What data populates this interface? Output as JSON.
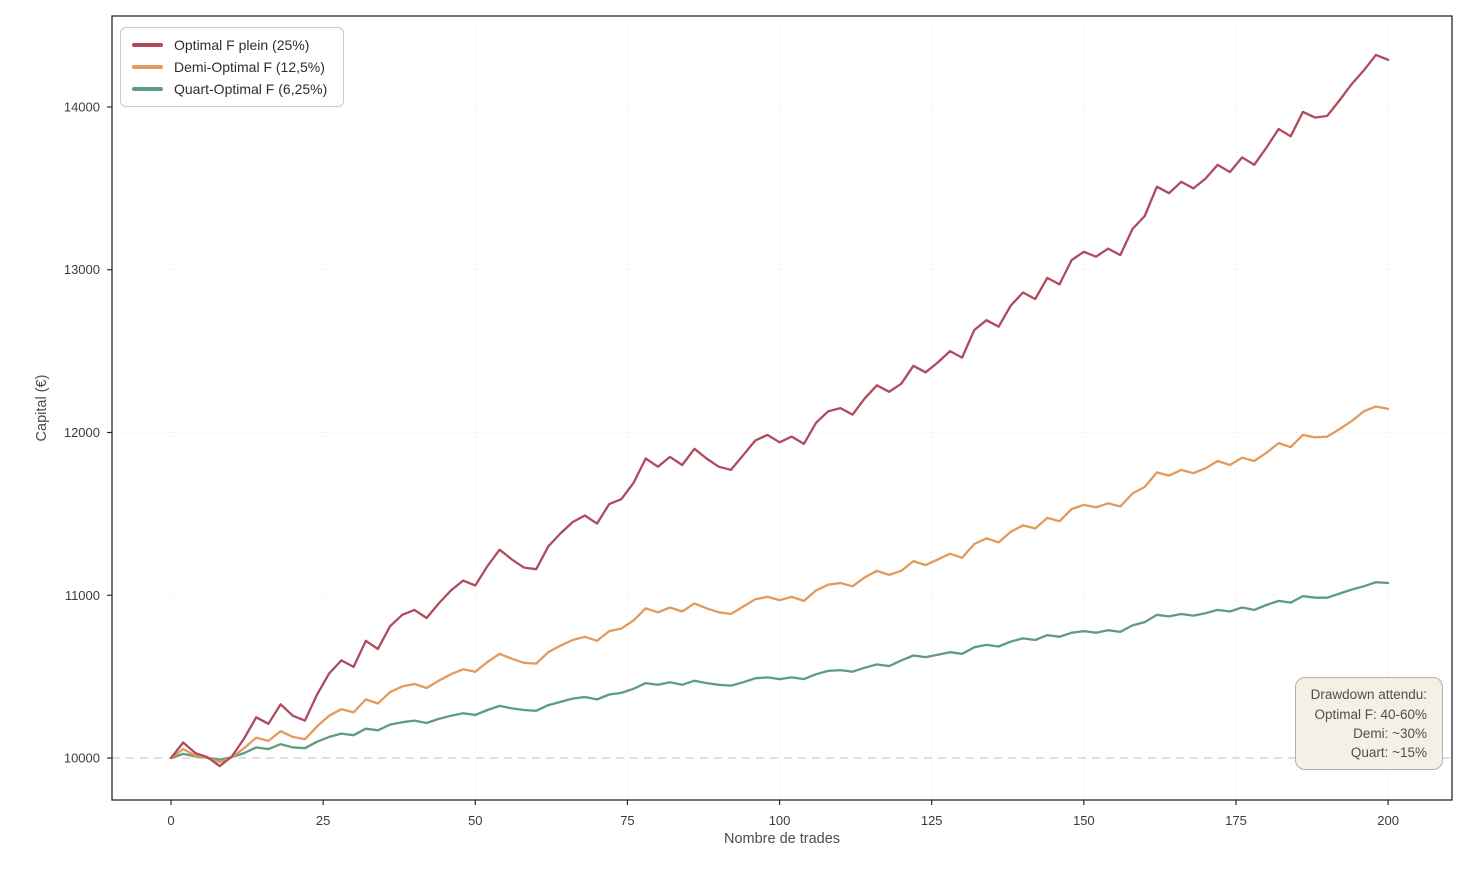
{
  "chart_data": {
    "type": "line",
    "title": "",
    "xlabel": "Nombre de trades",
    "ylabel": "Capital (€)",
    "x_ticks": [
      0,
      25,
      50,
      75,
      100,
      125,
      150,
      175,
      200
    ],
    "y_ticks": [
      10000,
      11000,
      12000,
      13000,
      14000
    ],
    "xlim": [
      -9.7,
      210.5
    ],
    "ylim": [
      9742,
      14559
    ],
    "grid": true,
    "grid_style": "dotted",
    "legend_position": "top-left",
    "baseline_value": 10000,
    "x_start": 0,
    "x_step": 2,
    "series": [
      {
        "name": "Optimal F plein (25%)",
        "color": "#b04a5e",
        "values": [
          10000,
          10095,
          10030,
          10005,
          9950,
          10010,
          10120,
          10250,
          10210,
          10330,
          10260,
          10230,
          10390,
          10520,
          10600,
          10560,
          10720,
          10670,
          10810,
          10880,
          10910,
          10860,
          10950,
          11030,
          11090,
          11060,
          11180,
          11280,
          11220,
          11170,
          11160,
          11300,
          11380,
          11450,
          11490,
          11440,
          11560,
          11590,
          11690,
          11840,
          11790,
          11850,
          11800,
          11900,
          11840,
          11790,
          11770,
          11860,
          11950,
          11985,
          11940,
          11975,
          11930,
          12060,
          12130,
          12150,
          12110,
          12210,
          12290,
          12250,
          12300,
          12410,
          12370,
          12430,
          12500,
          12460,
          12630,
          12690,
          12650,
          12780,
          12860,
          12820,
          12950,
          12910,
          13060,
          13110,
          13080,
          13130,
          13090,
          13250,
          13330,
          13510,
          13470,
          13540,
          13500,
          13560,
          13645,
          13600,
          13690,
          13645,
          13750,
          13865,
          13820,
          13970,
          13935,
          13945,
          14040,
          14140,
          14225,
          14320,
          14290
        ]
      },
      {
        "name": "Demi-Optimal F (12,5%)",
        "color": "#e39a5d",
        "values": [
          10000,
          10055,
          10015,
          10000,
          9975,
          10005,
          10060,
          10125,
          10105,
          10165,
          10130,
          10115,
          10195,
          10260,
          10300,
          10280,
          10360,
          10335,
          10405,
          10440,
          10455,
          10430,
          10475,
          10515,
          10545,
          10530,
          10590,
          10640,
          10610,
          10585,
          10580,
          10650,
          10690,
          10725,
          10745,
          10720,
          10780,
          10795,
          10845,
          10920,
          10895,
          10925,
          10900,
          10950,
          10920,
          10895,
          10885,
          10930,
          10975,
          10990,
          10970,
          10990,
          10965,
          11030,
          11065,
          11075,
          11055,
          11110,
          11150,
          11125,
          11150,
          11210,
          11185,
          11220,
          11255,
          11230,
          11315,
          11350,
          11325,
          11390,
          11430,
          11410,
          11475,
          11455,
          11530,
          11555,
          11540,
          11565,
          11545,
          11625,
          11665,
          11755,
          11735,
          11770,
          11750,
          11780,
          11825,
          11800,
          11845,
          11825,
          11875,
          11935,
          11910,
          11985,
          11970,
          11975,
          12020,
          12070,
          12130,
          12160,
          12145
        ]
      },
      {
        "name": "Quart-Optimal F (6,25%)",
        "color": "#5f9c7e",
        "values": [
          10000,
          10025,
          10010,
          10000,
          9990,
          10005,
          10030,
          10065,
          10055,
          10085,
          10065,
          10060,
          10100,
          10130,
          10150,
          10140,
          10180,
          10170,
          10205,
          10220,
          10230,
          10215,
          10240,
          10260,
          10275,
          10265,
          10295,
          10320,
          10305,
          10295,
          10290,
          10325,
          10345,
          10365,
          10375,
          10360,
          10390,
          10400,
          10425,
          10460,
          10450,
          10465,
          10450,
          10475,
          10460,
          10450,
          10445,
          10465,
          10490,
          10495,
          10485,
          10495,
          10485,
          10515,
          10535,
          10540,
          10530,
          10555,
          10575,
          10565,
          10600,
          10630,
          10620,
          10635,
          10650,
          10640,
          10680,
          10695,
          10685,
          10715,
          10735,
          10725,
          10755,
          10745,
          10770,
          10780,
          10770,
          10785,
          10775,
          10815,
          10835,
          10880,
          10870,
          10885,
          10875,
          10890,
          10910,
          10900,
          10925,
          10910,
          10940,
          10965,
          10955,
          10995,
          10985,
          10985,
          11010,
          11035,
          11055,
          11080,
          11075
        ]
      }
    ]
  },
  "colors": {
    "background": "#ffffff",
    "grid": "#eee6e4",
    "baseline": "#d6d6d6",
    "spine": "#2a2a2a",
    "tick_text": "#3c3c3c",
    "axis_title_text": "#4c4c4c",
    "annotation_bg": "#f4f0e5",
    "annotation_border": "#b5b1a3",
    "legend_border": "#c9c9c9"
  },
  "annotation": {
    "lines": [
      "Drawdown attendu:",
      "Optimal F: 40-60%",
      "Demi: ~30%",
      "Quart: ~15%"
    ]
  }
}
